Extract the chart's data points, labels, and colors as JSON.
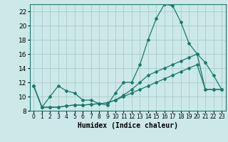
{
  "xlabel": "Humidex (Indice chaleur)",
  "bg_color": "#cce8e8",
  "line_color": "#1a7a6e",
  "grid_color": "#aacccc",
  "xlim": [
    -0.5,
    23.5
  ],
  "ylim": [
    8,
    23
  ],
  "yticks": [
    8,
    10,
    12,
    14,
    16,
    18,
    20,
    22
  ],
  "xticks": [
    0,
    1,
    2,
    3,
    4,
    5,
    6,
    7,
    8,
    9,
    10,
    11,
    12,
    13,
    14,
    15,
    16,
    17,
    18,
    19,
    20,
    21,
    22,
    23
  ],
  "series1_x": [
    0,
    1,
    2,
    3,
    4,
    5,
    6,
    7,
    8,
    9,
    10,
    11,
    12,
    13,
    14,
    15,
    16,
    17,
    18,
    19,
    20,
    21,
    22,
    23
  ],
  "series1_y": [
    11.5,
    8.5,
    10.0,
    11.5,
    10.8,
    10.5,
    9.5,
    9.5,
    9.0,
    8.8,
    10.5,
    12.0,
    12.0,
    14.5,
    18.0,
    21.0,
    23.0,
    22.8,
    20.5,
    17.5,
    16.0,
    14.8,
    13.0,
    11.0
  ],
  "series2_x": [
    0,
    1,
    2,
    3,
    4,
    5,
    6,
    7,
    8,
    9,
    10,
    11,
    12,
    13,
    14,
    15,
    16,
    17,
    18,
    19,
    20,
    21,
    22,
    23
  ],
  "series2_y": [
    11.5,
    8.5,
    8.5,
    8.5,
    8.7,
    8.8,
    8.8,
    8.9,
    9.0,
    9.1,
    9.5,
    10.0,
    10.5,
    11.0,
    11.5,
    12.0,
    12.5,
    13.0,
    13.5,
    14.0,
    14.5,
    11.0,
    11.0,
    11.0
  ],
  "series3_x": [
    0,
    1,
    2,
    3,
    4,
    5,
    6,
    7,
    8,
    9,
    10,
    11,
    12,
    13,
    14,
    15,
    16,
    17,
    18,
    19,
    20,
    21,
    22,
    23
  ],
  "series3_y": [
    11.5,
    8.5,
    8.5,
    8.5,
    8.7,
    8.8,
    8.8,
    8.9,
    9.0,
    9.1,
    9.5,
    10.2,
    11.0,
    12.0,
    13.0,
    13.5,
    14.0,
    14.5,
    15.0,
    15.5,
    16.0,
    11.0,
    11.0,
    11.0
  ],
  "xlabel_fontsize": 7,
  "ytick_fontsize": 6.5,
  "xtick_fontsize": 5.5
}
